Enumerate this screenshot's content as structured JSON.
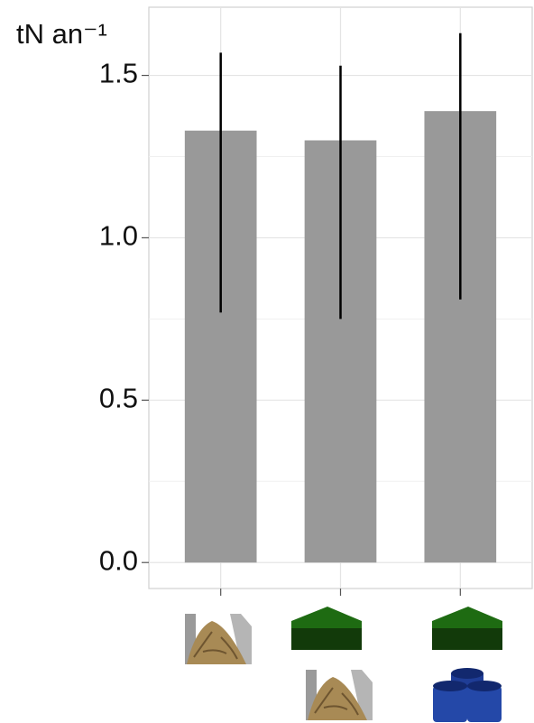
{
  "chart_data": {
    "type": "bar",
    "ylabel": "tN an⁻¹",
    "categories": [
      null,
      null,
      null
    ],
    "values": [
      1.33,
      1.3,
      1.39
    ],
    "error_lower": [
      0.77,
      0.75,
      0.81
    ],
    "error_upper": [
      1.57,
      1.53,
      1.63
    ],
    "color": "#999999",
    "ylim": [
      -0.08,
      1.71
    ],
    "yticks": [
      {
        "value": 0,
        "label": "0.0"
      },
      {
        "value": 0.5,
        "label": "0.5"
      },
      {
        "value": 1,
        "label": "1.0"
      },
      {
        "value": 1.5,
        "label": "1.5"
      }
    ],
    "minor_yticks": [
      0.25,
      0.75,
      1.25
    ],
    "grid": true
  }
}
